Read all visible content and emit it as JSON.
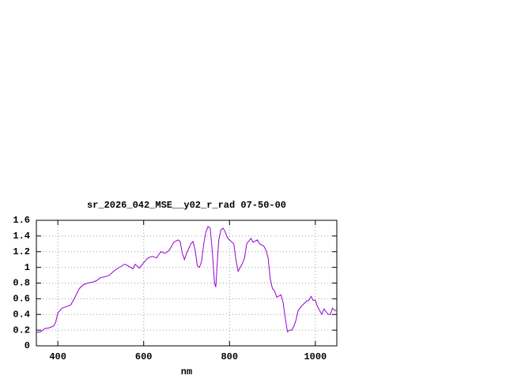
{
  "chart_data": {
    "type": "line",
    "title": "sr_2026_042_MSE__y02_r_rad 07-50-00",
    "x_label": "nm",
    "xlim": [
      350,
      1050
    ],
    "xticks": [
      400,
      600,
      800,
      1000
    ],
    "ylim": [
      0,
      1.6
    ],
    "yticks": [
      0,
      0.2,
      0.4,
      0.6,
      0.8,
      1,
      1.2,
      1.4,
      1.6
    ],
    "grid": true,
    "x": [
      350,
      360,
      370,
      380,
      390,
      395,
      400,
      410,
      420,
      430,
      440,
      450,
      460,
      470,
      480,
      490,
      500,
      510,
      520,
      530,
      540,
      550,
      555,
      560,
      570,
      575,
      580,
      590,
      600,
      610,
      620,
      630,
      640,
      650,
      660,
      670,
      680,
      685,
      690,
      695,
      700,
      710,
      715,
      720,
      725,
      730,
      735,
      740,
      745,
      750,
      755,
      760,
      765,
      768,
      772,
      775,
      780,
      785,
      790,
      795,
      800,
      810,
      815,
      820,
      830,
      835,
      840,
      850,
      855,
      865,
      870,
      880,
      885,
      890,
      895,
      900,
      905,
      910,
      920,
      925,
      930,
      935,
      940,
      945,
      950,
      955,
      960,
      970,
      980,
      985,
      990,
      995,
      1000,
      1005,
      1010,
      1015,
      1020,
      1030,
      1035,
      1040,
      1045,
      1050
    ],
    "series": [
      {
        "color": "#9400d3",
        "values": [
          0.17,
          0.18,
          0.22,
          0.23,
          0.25,
          0.3,
          0.42,
          0.48,
          0.5,
          0.52,
          0.62,
          0.73,
          0.78,
          0.8,
          0.81,
          0.83,
          0.87,
          0.88,
          0.9,
          0.95,
          0.99,
          1.02,
          1.04,
          1.03,
          1.0,
          0.98,
          1.04,
          0.99,
          1.06,
          1.12,
          1.14,
          1.12,
          1.2,
          1.18,
          1.22,
          1.32,
          1.35,
          1.33,
          1.18,
          1.1,
          1.18,
          1.3,
          1.33,
          1.22,
          1.02,
          1.0,
          1.08,
          1.3,
          1.45,
          1.52,
          1.5,
          1.2,
          0.8,
          0.75,
          1.1,
          1.35,
          1.48,
          1.5,
          1.45,
          1.38,
          1.35,
          1.3,
          1.1,
          0.95,
          1.05,
          1.12,
          1.3,
          1.37,
          1.32,
          1.35,
          1.3,
          1.27,
          1.22,
          1.12,
          0.85,
          0.73,
          0.7,
          0.62,
          0.65,
          0.55,
          0.35,
          0.18,
          0.2,
          0.2,
          0.25,
          0.33,
          0.45,
          0.52,
          0.57,
          0.58,
          0.63,
          0.58,
          0.58,
          0.5,
          0.45,
          0.4,
          0.47,
          0.4,
          0.4,
          0.48,
          0.45,
          0.45
        ]
      }
    ]
  }
}
